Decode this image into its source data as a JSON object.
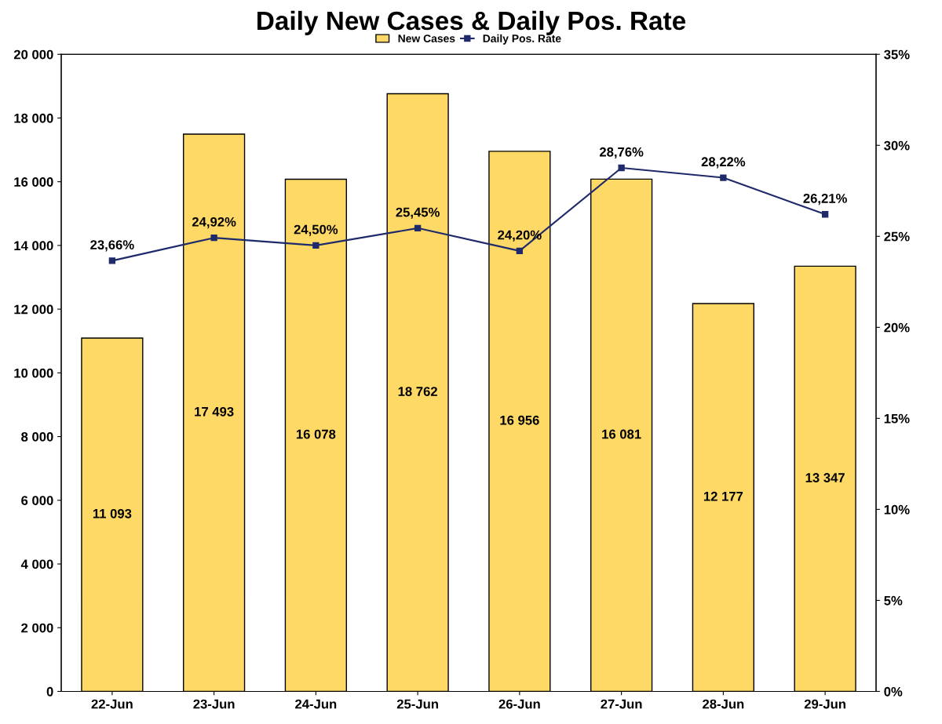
{
  "chart_data": {
    "type": "bar",
    "title": "Daily New Cases & Daily Pos. Rate",
    "categories": [
      "22-Jun",
      "23-Jun",
      "24-Jun",
      "25-Jun",
      "26-Jun",
      "27-Jun",
      "28-Jun",
      "29-Jun"
    ],
    "series": [
      {
        "name": "New Cases",
        "color": "#ffd966",
        "values": [
          11093,
          17493,
          16078,
          18762,
          16956,
          16081,
          12177,
          13347
        ],
        "value_labels": [
          "11 093",
          "17 493",
          "16 078",
          "18 762",
          "16 956",
          "16 081",
          "12 177",
          "13 347"
        ]
      },
      {
        "name": "Daily Pos. Rate",
        "type": "line",
        "axis": "y2",
        "color": "#1f2a6b",
        "marker": "square",
        "values": [
          23.66,
          24.92,
          24.5,
          25.45,
          24.2,
          28.76,
          28.22,
          26.21
        ],
        "value_labels": [
          "23,66%",
          "24,92%",
          "24,50%",
          "25,45%",
          "24,20%",
          "28,76%",
          "28,22%",
          "26,21%"
        ]
      }
    ],
    "ylim": [
      0,
      20000
    ],
    "yticks": [
      0,
      {
        "value": 2000,
        "label": "2 000"
      },
      {
        "value": 4000,
        "label": "4 000"
      },
      {
        "value": 6000,
        "label": "6 000"
      },
      {
        "value": 8000,
        "label": "8 000"
      },
      {
        "value": 10000,
        "label": "10 000"
      },
      {
        "value": 12000,
        "label": "12 000"
      },
      {
        "value": 14000,
        "label": "14 000"
      },
      {
        "value": 16000,
        "label": "16 000"
      },
      {
        "value": 18000,
        "label": "18 000"
      },
      {
        "value": 20000,
        "label": "20 000"
      }
    ],
    "y2lim": [
      0,
      35
    ],
    "y2ticks": [
      {
        "value": 0,
        "label": "0%"
      },
      {
        "value": 5,
        "label": "5%"
      },
      {
        "value": 10,
        "label": "10%"
      },
      {
        "value": 15,
        "label": "15%"
      },
      {
        "value": 20,
        "label": "20%"
      },
      {
        "value": 25,
        "label": "25%"
      },
      {
        "value": 30,
        "label": "30%"
      },
      {
        "value": 35,
        "label": "35%"
      }
    ],
    "legend": "top",
    "grid": false
  }
}
